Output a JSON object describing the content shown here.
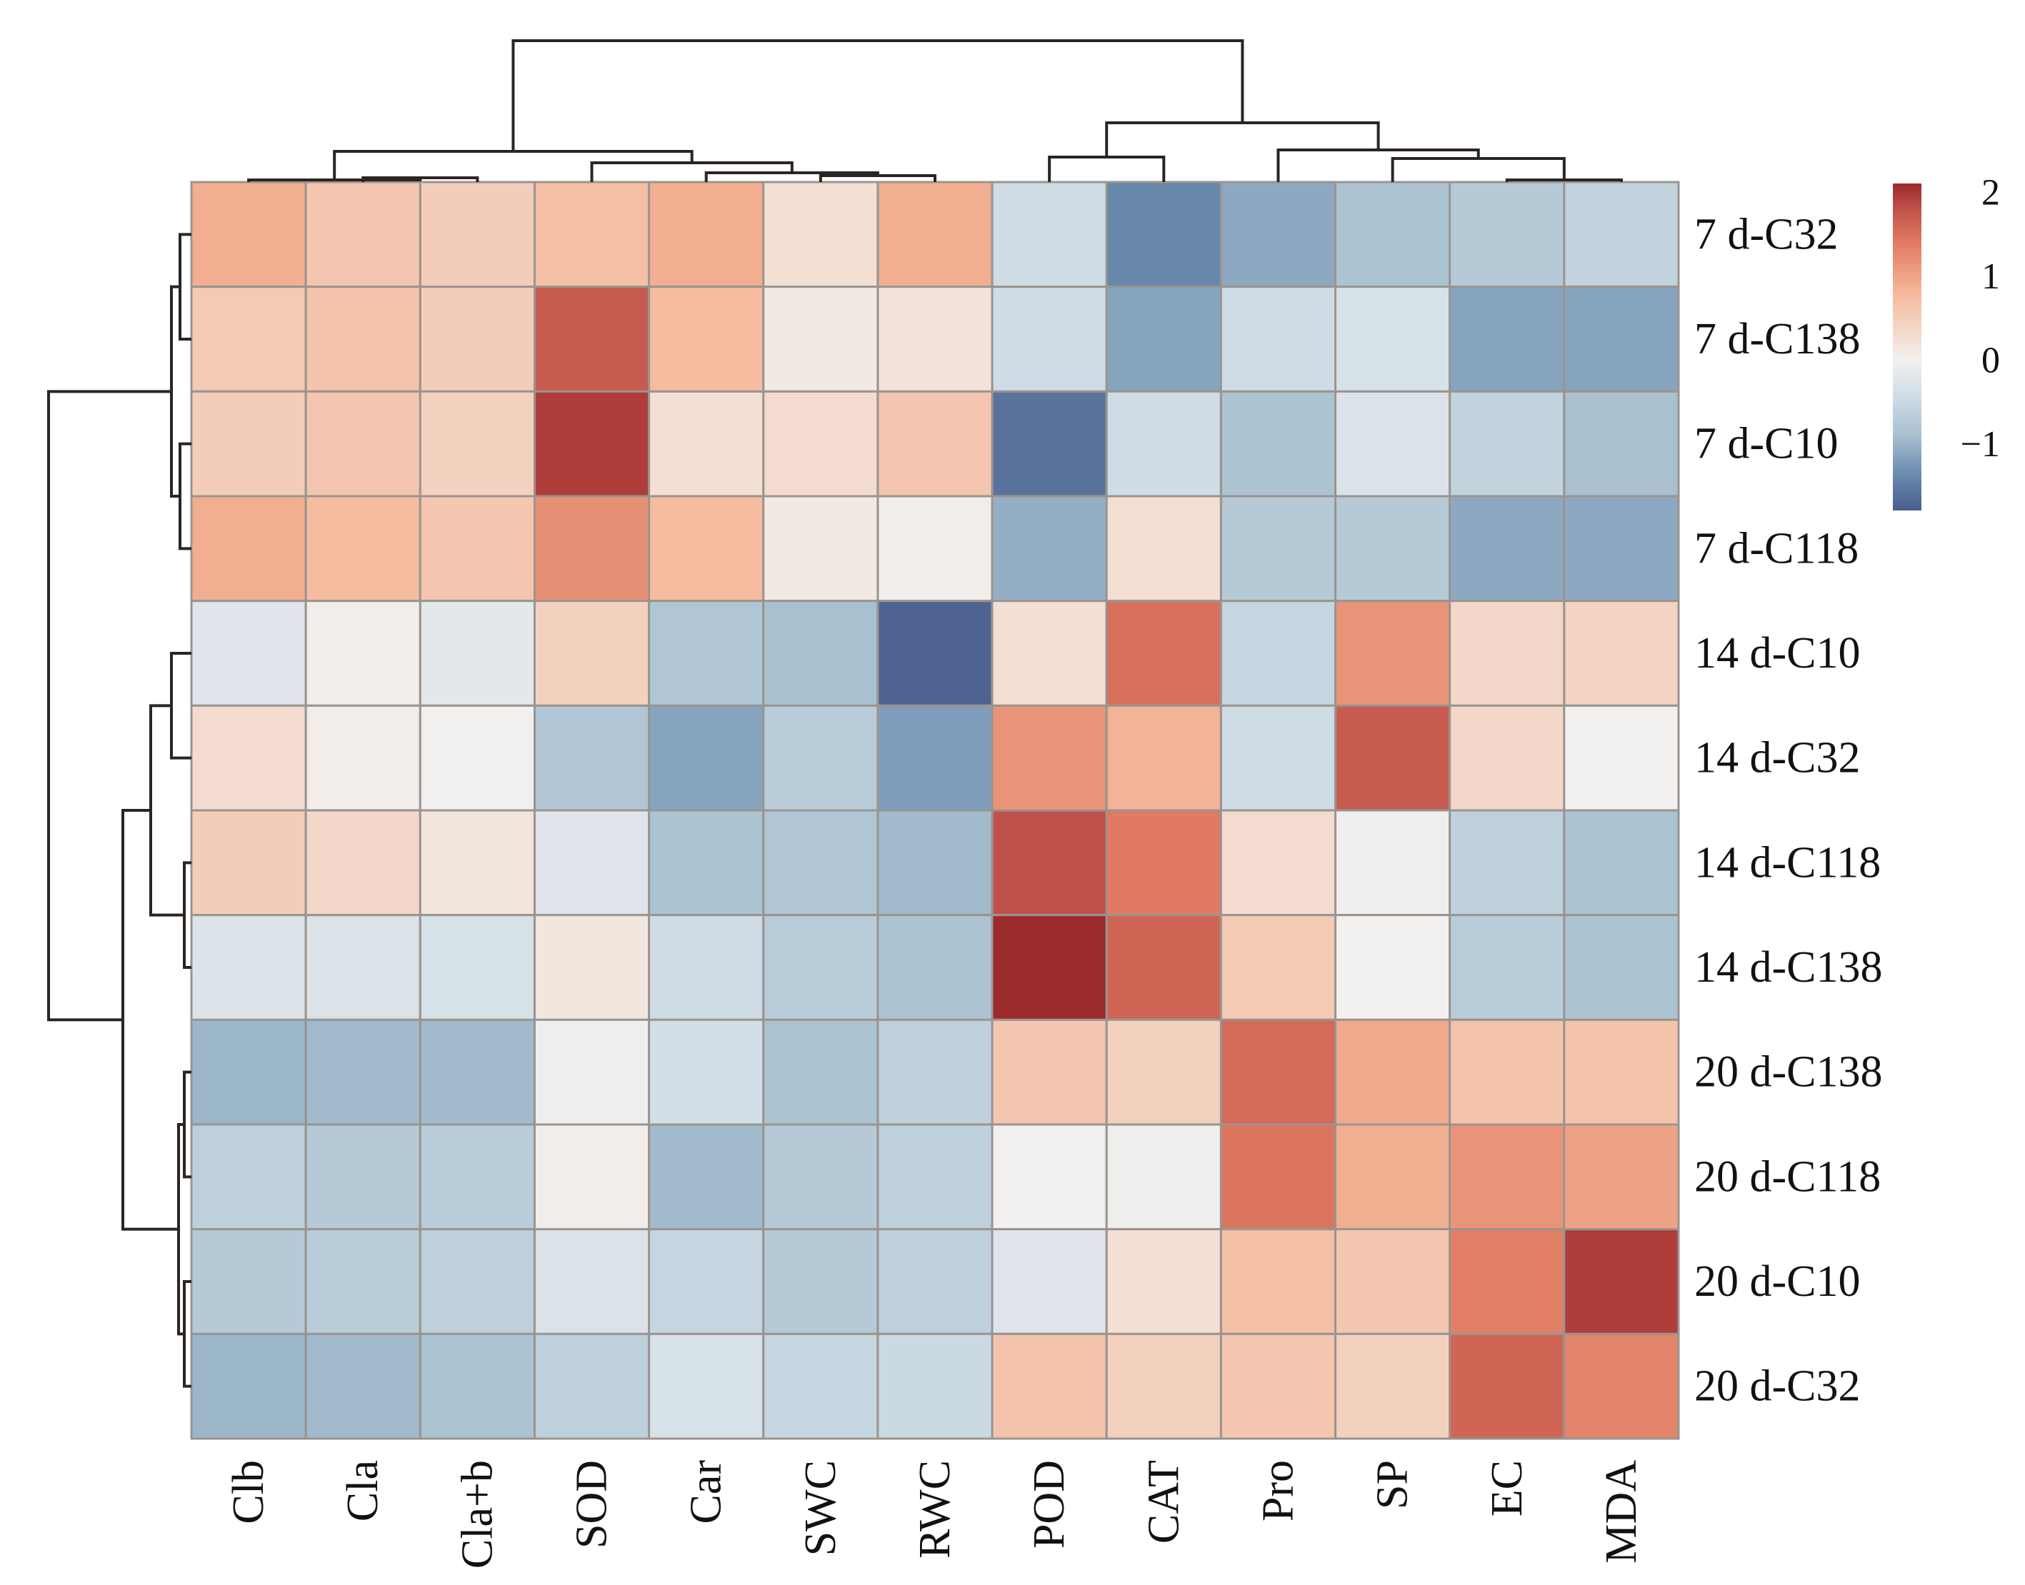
{
  "chart_data": {
    "type": "heatmap",
    "title": "",
    "xlabel": "",
    "ylabel": "",
    "columns": [
      "Clb",
      "Cla",
      "Cla+b",
      "SOD",
      "Car",
      "SWC",
      "RWC",
      "POD",
      "CAT",
      "Pro",
      "SP",
      "EC",
      "MDA"
    ],
    "rows": [
      "7 d-C32",
      "7 d-C138",
      "7 d-C10",
      "7 d-C118",
      "14 d-C10",
      "14 d-C32",
      "14 d-C118",
      "14 d-C138",
      "20 d-C138",
      "20 d-C118",
      "20 d-C10",
      "20 d-C32"
    ],
    "values": [
      [
        0.9,
        0.6,
        0.5,
        0.7,
        0.9,
        0.25,
        0.9,
        -0.45,
        -1.4,
        -1.1,
        -0.85,
        -0.75,
        -0.6
      ],
      [
        0.55,
        0.65,
        0.5,
        1.7,
        0.75,
        0.1,
        0.2,
        -0.45,
        -1.15,
        -0.45,
        -0.35,
        -1.15,
        -1.15
      ],
      [
        0.5,
        0.6,
        0.45,
        1.95,
        0.25,
        0.3,
        0.6,
        -1.6,
        -0.45,
        -0.85,
        -0.3,
        -0.6,
        -0.9
      ],
      [
        0.9,
        0.75,
        0.6,
        1.2,
        0.75,
        0.1,
        0.05,
        -1.05,
        0.25,
        -0.75,
        -0.75,
        -1.1,
        -1.1
      ],
      [
        -0.25,
        0.05,
        -0.2,
        0.45,
        -0.8,
        -0.9,
        -1.75,
        0.25,
        1.5,
        -0.55,
        1.15,
        0.35,
        0.4
      ],
      [
        0.3,
        0.05,
        0.0,
        -0.8,
        -1.15,
        -0.7,
        -1.2,
        1.15,
        0.85,
        -0.45,
        1.7,
        0.35,
        0.0
      ],
      [
        0.5,
        0.35,
        0.15,
        -0.25,
        -0.85,
        -0.8,
        -0.95,
        1.8,
        1.4,
        0.3,
        -0.05,
        -0.65,
        -0.85
      ],
      [
        -0.3,
        -0.3,
        -0.35,
        0.15,
        -0.45,
        -0.7,
        -0.85,
        2.1,
        1.6,
        0.55,
        0.0,
        -0.7,
        -0.85
      ],
      [
        -1.0,
        -0.95,
        -0.95,
        -0.05,
        -0.4,
        -0.85,
        -0.65,
        0.6,
        0.45,
        1.55,
        0.95,
        0.65,
        0.65
      ],
      [
        -0.65,
        -0.75,
        -0.7,
        0.05,
        -0.95,
        -0.75,
        -0.65,
        0.0,
        -0.05,
        1.45,
        0.9,
        1.15,
        1.0
      ],
      [
        -0.75,
        -0.7,
        -0.65,
        -0.3,
        -0.55,
        -0.75,
        -0.65,
        -0.25,
        0.25,
        0.7,
        0.6,
        1.35,
        1.95
      ],
      [
        -1.0,
        -0.95,
        -0.85,
        -0.65,
        -0.35,
        -0.55,
        -0.5,
        0.65,
        0.45,
        0.6,
        0.45,
        1.6,
        1.3
      ]
    ],
    "colorbar": {
      "ticks": [
        "2",
        "1",
        "0",
        "−1"
      ],
      "tick_values": [
        2,
        1,
        0,
        -1
      ],
      "range": [
        -1.8,
        2.1
      ],
      "colors": {
        "low": "#4a5e8e",
        "mid_low": "#a8c0d0",
        "mid": "#f2f0ee",
        "mid_high": "#f5b89b",
        "high": "#9c2a2c"
      }
    },
    "legend_placement": "top-right",
    "row_dendrogram": {
      "clusters": [
        [
          [
            "7 d-C32",
            "7 d-C138"
          ],
          [
            "7 d-C10",
            "7 d-C118"
          ]
        ],
        [
          [
            [
              "14 d-C10",
              "14 d-C32"
            ],
            [
              "14 d-C118",
              "14 d-C138"
            ]
          ],
          [
            [
              "20 d-C138",
              "20 d-C118"
            ],
            [
              "20 d-C10",
              "20 d-C32"
            ]
          ]
        ]
      ]
    },
    "col_dendrogram": {
      "clusters": [
        [
          [
            "Clb",
            "Cla",
            "Cla+b"
          ],
          [
            "SOD",
            [
              "Car",
              [
                "SWC",
                "RWC"
              ]
            ]
          ]
        ],
        [
          [
            "POD",
            "CAT"
          ],
          [
            "Pro",
            [
              "SP",
              [
                "EC",
                "MDA"
              ]
            ]
          ]
        ]
      ]
    }
  }
}
